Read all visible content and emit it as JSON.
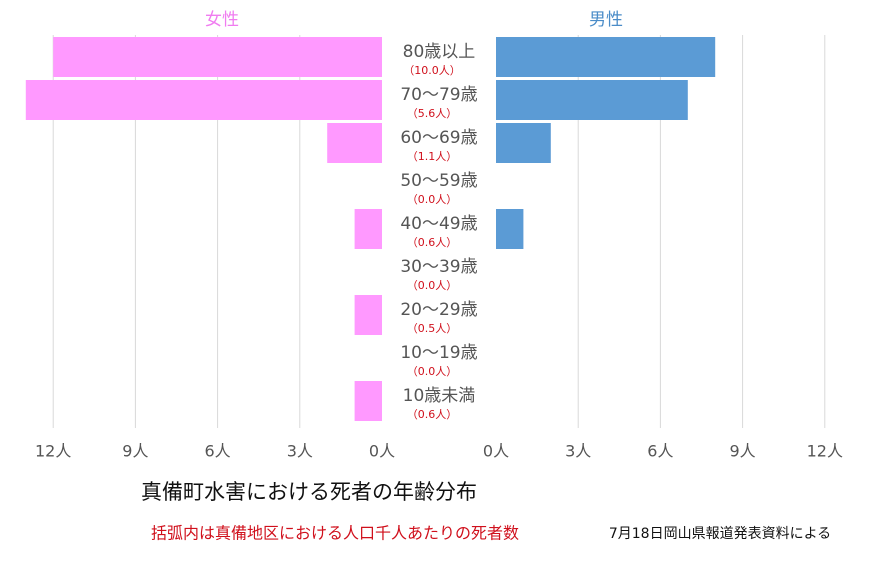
{
  "chart_data": {
    "type": "pyramid",
    "title": "真備町水害における死者の年齢分布",
    "note": "括弧内は真備地区における人口千人あたりの死者数",
    "source": "7月18日岡山県報道発表資料による",
    "categories": [
      "80歳以上",
      "70〜79歳",
      "60〜69歳",
      "50〜59歳",
      "40〜49歳",
      "30〜39歳",
      "20〜29歳",
      "10〜19歳",
      "10歳未満"
    ],
    "rate_labels": [
      "（10.0人）",
      "（5.6人）",
      "（1.1人）",
      "（0.0人）",
      "（0.6人）",
      "（0.0人）",
      "（0.5人）",
      "（0.0人）",
      "（0.6人）"
    ],
    "series": [
      {
        "name": "女性",
        "color": "#ff99ff",
        "values": [
          12,
          13,
          2,
          0,
          1,
          0,
          1,
          0,
          1
        ]
      },
      {
        "name": "男性",
        "color": "#5b9bd5",
        "values": [
          8,
          7,
          2,
          0,
          1,
          0,
          0,
          0,
          0
        ]
      }
    ],
    "xlim": [
      0,
      13
    ],
    "xticks": [
      {
        "value": 0,
        "label": "0人"
      },
      {
        "value": 3,
        "label": "3人"
      },
      {
        "value": 6,
        "label": "6人"
      },
      {
        "value": 9,
        "label": "9人"
      },
      {
        "value": 12,
        "label": "12人"
      }
    ],
    "grid": true
  }
}
